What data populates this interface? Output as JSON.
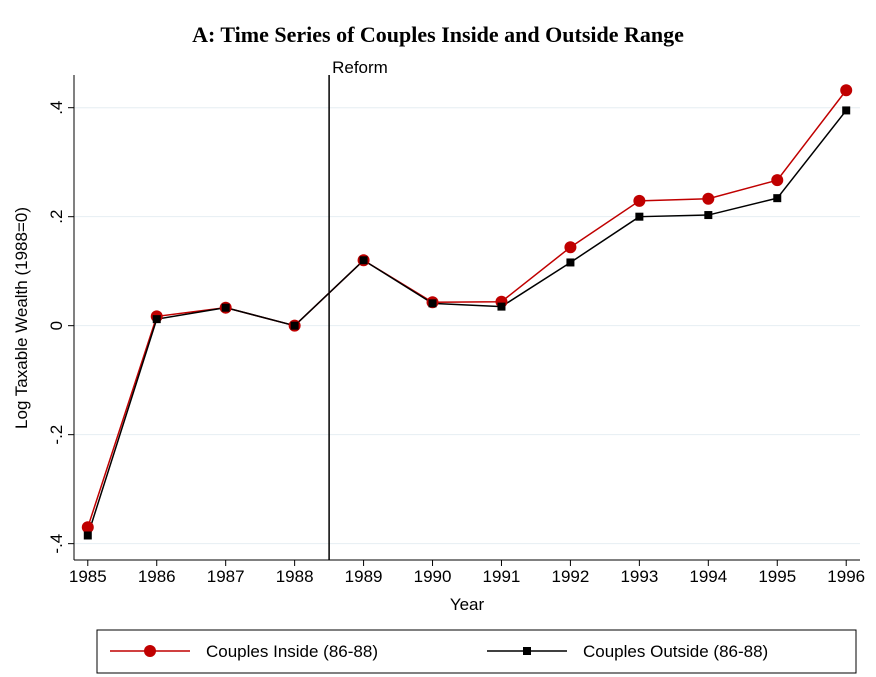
{
  "chart_data": {
    "type": "line",
    "title": "A: Time Series of Couples Inside and Outside Range",
    "x_label": "Year",
    "y_label": "Log Taxable Wealth (1988=0)",
    "x": [
      1985,
      1986,
      1987,
      1988,
      1989,
      1990,
      1991,
      1992,
      1993,
      1994,
      1995,
      1996
    ],
    "series": [
      {
        "name": "Couples Inside (86-88)",
        "color": "#c00000",
        "marker": "circle",
        "values": [
          -0.37,
          0.017,
          0.033,
          0,
          0.12,
          0.043,
          0.044,
          0.144,
          0.229,
          0.233,
          0.267,
          0.432
        ]
      },
      {
        "name": "Couples Outside (86-88)",
        "color": "#000000",
        "marker": "square",
        "values": [
          -0.385,
          0.012,
          0.033,
          0,
          0.12,
          0.041,
          0.035,
          0.116,
          0.2,
          0.203,
          0.234,
          0.395
        ]
      }
    ],
    "xlim": [
      1984.8,
      1996.2
    ],
    "xticks": [
      1985,
      1986,
      1987,
      1988,
      1989,
      1990,
      1991,
      1992,
      1993,
      1994,
      1995,
      1996
    ],
    "ylim": [
      -0.43,
      0.46
    ],
    "yticks": [
      {
        "value": -0.4,
        "label": "-.4"
      },
      {
        "value": -0.2,
        "label": "-.2"
      },
      0,
      {
        "value": 0.2,
        "label": ".2"
      },
      {
        "value": 0.4,
        "label": ".4"
      }
    ],
    "grid": true,
    "reference_line": {
      "x": 1988.5,
      "label": "Reform"
    },
    "legend": "bottom"
  }
}
